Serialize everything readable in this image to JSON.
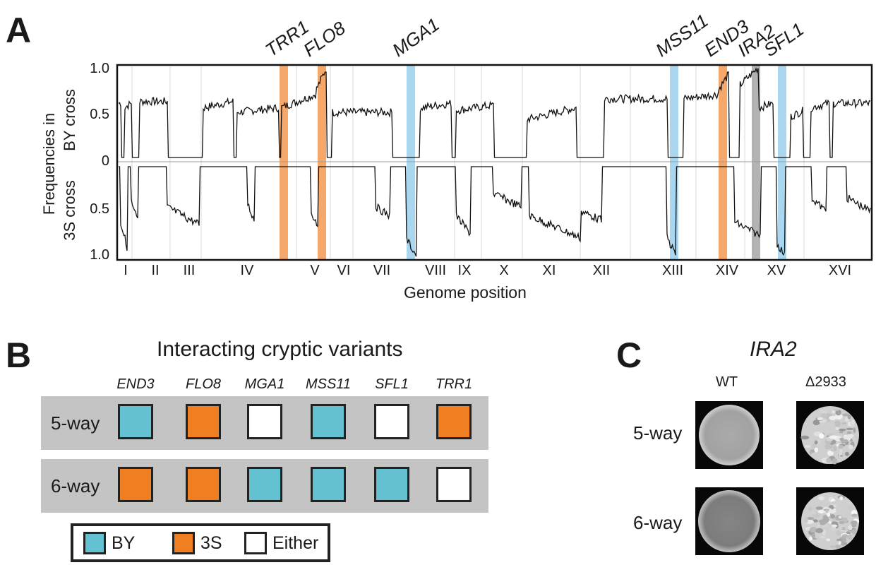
{
  "panel_a": {
    "letter": "A",
    "y_label_line1": "Frequencies in",
    "y_label_top": "BY cross",
    "y_label_bottom": "3S cross",
    "x_label": "Genome position",
    "yticks_top": [
      "1.0",
      "0.5",
      "0"
    ],
    "yticks_bottom": [
      "0.5",
      "1.0"
    ],
    "chromosomes": [
      "I",
      "II",
      "III",
      "IV",
      "V",
      "VI",
      "VII",
      "VIII",
      "IX",
      "X",
      "XI",
      "XII",
      "XIII",
      "XIV",
      "XV",
      "XVI"
    ],
    "genes": [
      {
        "name": "TRR1",
        "color": "#f5a86a"
      },
      {
        "name": "FLO8",
        "color": "#f5a86a"
      },
      {
        "name": "MGA1",
        "color": "#a9d7ef"
      },
      {
        "name": "MSS11",
        "color": "#a9d7ef"
      },
      {
        "name": "END3",
        "color": "#f5a86a"
      },
      {
        "name": "IRA2",
        "color": "#b3b3b3"
      },
      {
        "name": "SFL1",
        "color": "#a9d7ef"
      }
    ]
  },
  "panel_b": {
    "letter": "B",
    "title": "Interacting cryptic variants",
    "columns": [
      "END3",
      "FLO8",
      "MGA1",
      "MSS11",
      "SFL1",
      "TRR1"
    ],
    "rows": [
      {
        "label": "5-way",
        "cells": [
          "BY",
          "3S",
          "Either",
          "BY",
          "Either",
          "3S"
        ]
      },
      {
        "label": "6-way",
        "cells": [
          "3S",
          "3S",
          "BY",
          "BY",
          "BY",
          "Either"
        ]
      }
    ],
    "legend": [
      {
        "key": "BY",
        "label": "BY",
        "color": "#63c1d1"
      },
      {
        "key": "3S",
        "label": "3S",
        "color": "#f07f22"
      },
      {
        "key": "Either",
        "label": "Either",
        "color": "#ffffff"
      }
    ]
  },
  "panel_c": {
    "letter": "C",
    "title": "IRA2",
    "columns": [
      "WT",
      "Δ2933"
    ],
    "rows": [
      "5-way",
      "6-way"
    ]
  }
}
